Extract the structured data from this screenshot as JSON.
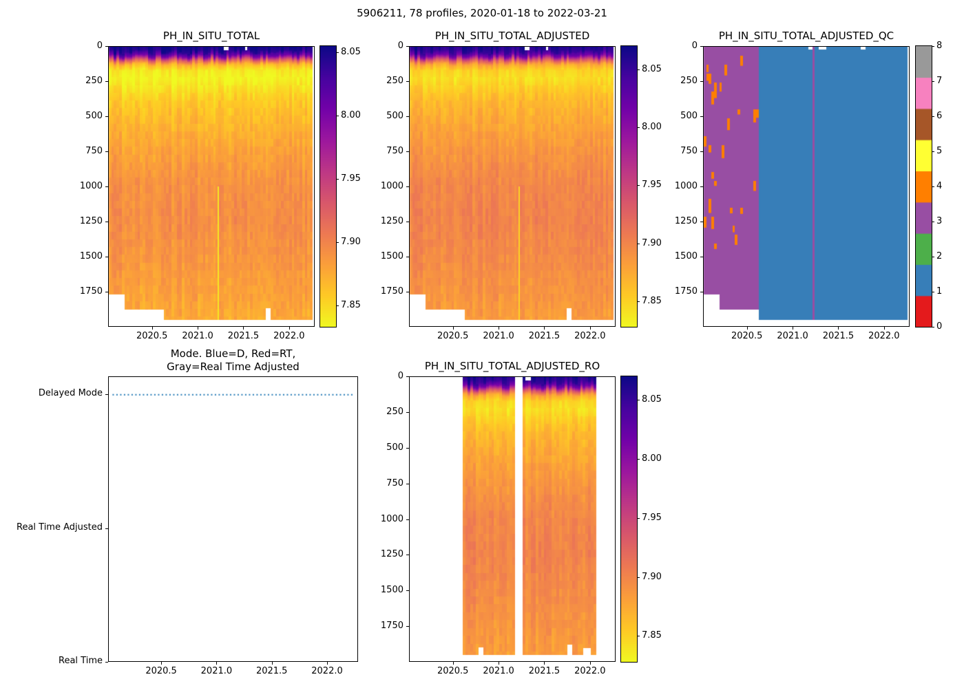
{
  "figure": {
    "title": "5906211, 78 profiles, 2020-01-18 to 2022-03-21",
    "float_id": "5906211",
    "n_profiles": 78,
    "date_range": "2020-01-18 to 2022-03-21",
    "profile_interval_years": 0.0286,
    "background": "#ffffff"
  },
  "chart_data": [
    {
      "id": "ph_in_situ_total",
      "type": "heatmap",
      "title": "PH_IN_SITU_TOTAL",
      "x_range": [
        2020.02,
        2022.28
      ],
      "x_ticks": [
        "2020.5",
        "2021.0",
        "2021.5",
        "2022.0"
      ],
      "y_range": [
        0,
        2000
      ],
      "y_ticks": [
        "0",
        "250",
        "500",
        "750",
        "1000",
        "1250",
        "1500",
        "1750"
      ],
      "colormap": "plasma_r",
      "vmin": 7.833,
      "vmax": 8.055,
      "colorbar_ticks": [
        "7.85",
        "7.90",
        "7.95",
        "8.00",
        "8.05"
      ],
      "data_start": 2020.03,
      "data_end": 2022.26,
      "depth_profile": [
        [
          0,
          8.056
        ],
        [
          40,
          8.045
        ],
        [
          70,
          8.005
        ],
        [
          100,
          7.925
        ],
        [
          130,
          7.868
        ],
        [
          170,
          7.842
        ],
        [
          230,
          7.835
        ],
        [
          300,
          7.846
        ],
        [
          400,
          7.859
        ],
        [
          550,
          7.869
        ],
        [
          750,
          7.881
        ],
        [
          1000,
          7.892
        ],
        [
          1250,
          7.894
        ],
        [
          1500,
          7.889
        ],
        [
          1750,
          7.882
        ],
        [
          1950,
          7.876
        ]
      ],
      "bottom_steps": [
        [
          2020.03,
          2020.19,
          1770
        ],
        [
          2020.19,
          2020.63,
          1880
        ],
        [
          2020.63,
          2022.26,
          1955
        ]
      ],
      "bottom_notches": [
        {
          "x0": 2021.76,
          "x1": 2021.8,
          "from_depth": 1870
        }
      ],
      "top_notches": [
        {
          "x0": 2021.3,
          "x1": 2021.34,
          "to_depth": 25
        },
        {
          "x0": 2021.52,
          "x1": 2021.56,
          "to_depth": 25
        }
      ],
      "stripes": [
        {
          "x": 2021.22,
          "from_depth": 1000,
          "value": 7.842
        }
      ]
    },
    {
      "id": "ph_in_situ_total_adjusted",
      "type": "heatmap",
      "title": "PH_IN_SITU_TOTAL_ADJUSTED",
      "x_range": [
        2020.02,
        2022.28
      ],
      "x_ticks": [
        "2020.5",
        "2021.0",
        "2021.5",
        "2022.0"
      ],
      "y_range": [
        0,
        2000
      ],
      "y_ticks": [
        "0",
        "250",
        "500",
        "750",
        "1000",
        "1250",
        "1500",
        "1750"
      ],
      "colormap": "plasma_r",
      "vmin": 7.828,
      "vmax": 8.07,
      "colorbar_ticks": [
        "7.85",
        "7.90",
        "7.95",
        "8.00",
        "8.05"
      ],
      "data_start": 2020.03,
      "data_end": 2022.26,
      "depth_profile": [
        [
          0,
          8.064
        ],
        [
          40,
          8.053
        ],
        [
          70,
          8.013
        ],
        [
          100,
          7.933
        ],
        [
          130,
          7.876
        ],
        [
          170,
          7.85
        ],
        [
          230,
          7.843
        ],
        [
          300,
          7.854
        ],
        [
          400,
          7.867
        ],
        [
          550,
          7.877
        ],
        [
          750,
          7.889
        ],
        [
          1000,
          7.9
        ],
        [
          1250,
          7.902
        ],
        [
          1500,
          7.897
        ],
        [
          1750,
          7.89
        ],
        [
          1950,
          7.884
        ]
      ],
      "bottom_steps": [
        [
          2020.03,
          2020.19,
          1770
        ],
        [
          2020.19,
          2020.63,
          1880
        ],
        [
          2020.63,
          2022.26,
          1955
        ]
      ],
      "bottom_notches": [
        {
          "x0": 2021.76,
          "x1": 2021.8,
          "from_depth": 1870
        }
      ],
      "top_notches": [
        {
          "x0": 2021.3,
          "x1": 2021.34,
          "to_depth": 25
        },
        {
          "x0": 2021.52,
          "x1": 2021.56,
          "to_depth": 25
        }
      ],
      "stripes": [
        {
          "x": 2021.22,
          "from_depth": 1000,
          "value": 7.85
        }
      ]
    },
    {
      "id": "ph_in_situ_total_adjusted_qc",
      "type": "heatmap",
      "title": "PH_IN_SITU_TOTAL_ADJUSTED_QC",
      "x_range": [
        2020.02,
        2022.28
      ],
      "x_ticks": [
        "2020.5",
        "2021.0",
        "2021.5",
        "2022.0"
      ],
      "y_range": [
        0,
        2000
      ],
      "y_ticks": [
        "0",
        "250",
        "500",
        "750",
        "1000",
        "1250",
        "1500",
        "1750"
      ],
      "value_kind": "qc_flag",
      "categories": [
        "0",
        "1",
        "2",
        "3",
        "4",
        "5",
        "6",
        "7",
        "8"
      ],
      "category_colors": [
        "#e41a1c",
        "#377eb8",
        "#4daf4a",
        "#984ea3",
        "#ff7f00",
        "#ffff33",
        "#a65628",
        "#f781bf",
        "#999999"
      ],
      "colorbar_ticks": [
        "0",
        "1",
        "2",
        "3",
        "4",
        "5",
        "6",
        "7",
        "8"
      ],
      "data_start": 2020.03,
      "data_end": 2022.26,
      "regions": [
        {
          "x0": 2020.03,
          "x1": 2020.63,
          "qc": 3
        },
        {
          "x0": 2020.63,
          "x1": 2022.26,
          "qc": 1
        }
      ],
      "stripes": [
        {
          "x": 2021.22,
          "qc": 3
        }
      ],
      "speckles": {
        "qc": 4,
        "x0": 2020.03,
        "x1": 2020.63,
        "max_depth": 1700
      },
      "bottom_steps": [
        [
          2020.03,
          2020.19,
          1770
        ],
        [
          2020.19,
          2020.63,
          1880
        ],
        [
          2020.63,
          2022.26,
          1955
        ]
      ],
      "top_notches": [
        {
          "x0": 2021.18,
          "x1": 2021.24,
          "to_depth": 20
        },
        {
          "x0": 2021.3,
          "x1": 2021.36,
          "to_depth": 20
        },
        {
          "x0": 2021.74,
          "x1": 2021.8,
          "to_depth": 20
        }
      ]
    },
    {
      "id": "mode",
      "type": "line",
      "title": "Mode. Blue=D, Red=RT,\nGray=Real Time Adjusted",
      "x_range": [
        2020.02,
        2022.28
      ],
      "x_ticks": [
        "2020.5",
        "2021.0",
        "2021.5",
        "2022.0"
      ],
      "y_categories": [
        "Delayed Mode",
        "Real Time Adjusted",
        "Real Time"
      ],
      "legend_note": "Blue=D, Red=RT, Gray=Real Time Adjusted",
      "series": [
        {
          "name": "data-mode",
          "color": "#1f77b4",
          "line_style": "dotted",
          "y": "Delayed Mode",
          "x_start": 2020.06,
          "x_end": 2022.24
        }
      ]
    },
    {
      "id": "ph_in_situ_total_adjusted_ro",
      "type": "heatmap",
      "title": "PH_IN_SITU_TOTAL_ADJUSTED_RO",
      "x_range": [
        2020.02,
        2022.28
      ],
      "x_ticks": [
        "2020.5",
        "2021.0",
        "2021.5",
        "2022.0"
      ],
      "y_range": [
        0,
        2000
      ],
      "y_ticks": [
        "0",
        "250",
        "500",
        "750",
        "1000",
        "1250",
        "1500",
        "1750"
      ],
      "colormap": "plasma_r",
      "vmin": 7.828,
      "vmax": 8.07,
      "colorbar_ticks": [
        "7.85",
        "7.90",
        "7.95",
        "8.00",
        "8.05"
      ],
      "data_start": 2020.61,
      "data_end": 2022.08,
      "depth_profile": [
        [
          0,
          8.064
        ],
        [
          40,
          8.053
        ],
        [
          70,
          8.013
        ],
        [
          100,
          7.933
        ],
        [
          130,
          7.876
        ],
        [
          170,
          7.85
        ],
        [
          230,
          7.843
        ],
        [
          300,
          7.854
        ],
        [
          400,
          7.867
        ],
        [
          550,
          7.877
        ],
        [
          750,
          7.889
        ],
        [
          1000,
          7.9
        ],
        [
          1250,
          7.902
        ],
        [
          1500,
          7.897
        ],
        [
          1750,
          7.89
        ],
        [
          1950,
          7.884
        ]
      ],
      "gaps": [
        {
          "x0": 2021.19,
          "x1": 2021.26
        }
      ],
      "bottom_steps": [
        [
          2020.61,
          2022.08,
          1955
        ]
      ],
      "bottom_notches": [
        {
          "x0": 2020.79,
          "x1": 2020.83,
          "from_depth": 1900
        },
        {
          "x0": 2021.76,
          "x1": 2021.8,
          "from_depth": 1880
        },
        {
          "x0": 2021.92,
          "x1": 2022.02,
          "from_depth": 1905
        }
      ],
      "top_notches": [
        {
          "x0": 2021.3,
          "x1": 2021.36,
          "to_depth": 25
        }
      ],
      "stripes": []
    }
  ]
}
